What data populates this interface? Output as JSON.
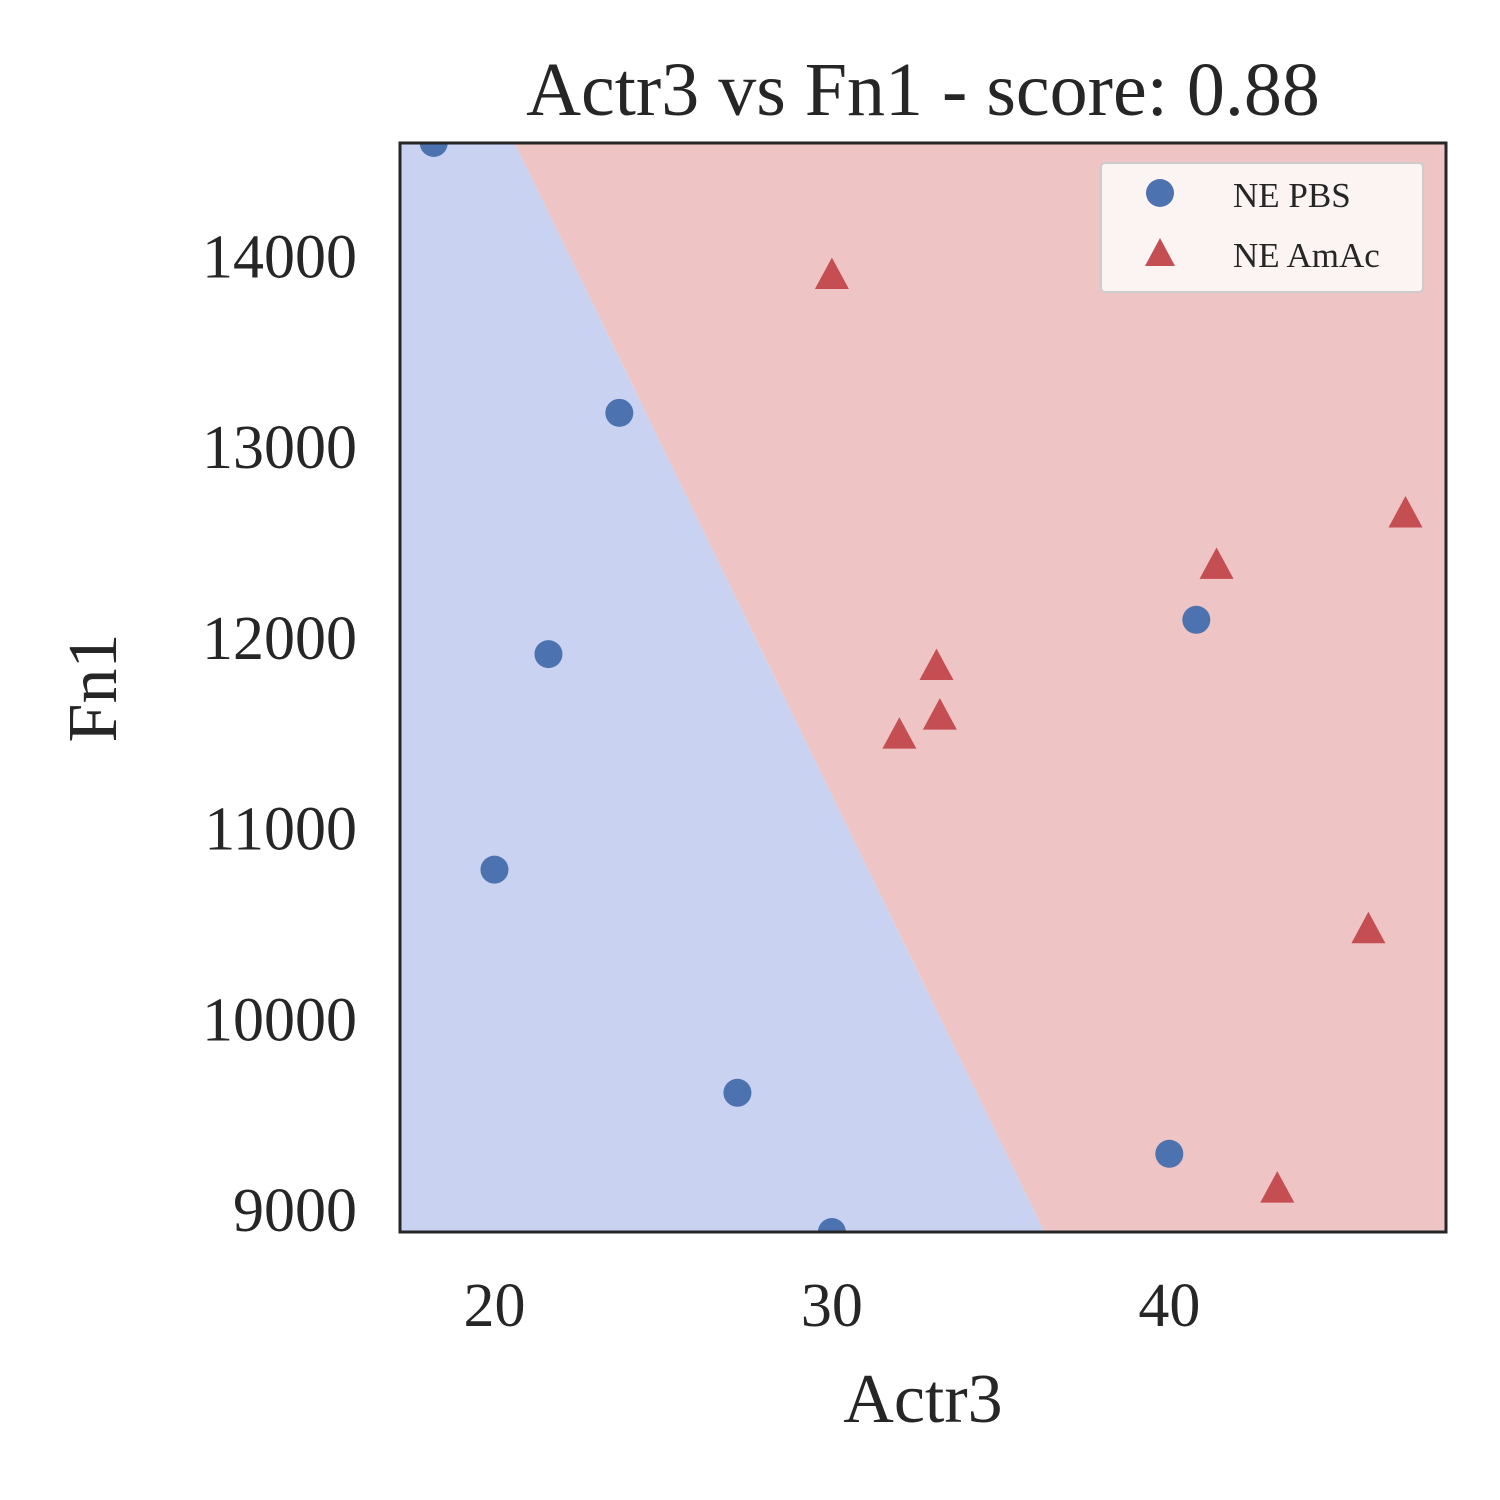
{
  "chart_data": {
    "type": "scatter",
    "title": "Actr3 vs Fn1 - score: 0.88",
    "xlabel": "Actr3",
    "ylabel": "Fn1",
    "xlim": [
      17.2,
      48.2
    ],
    "ylim": [
      8880,
      14590
    ],
    "xticks": [
      20,
      30,
      40
    ],
    "yticks": [
      9000,
      10000,
      11000,
      12000,
      13000,
      14000
    ],
    "grid": false,
    "legend_position": "top-right",
    "decision_boundary": {
      "points": [
        [
          20.6,
          14590
        ],
        [
          36.3,
          8880
        ]
      ],
      "left_region_class": "NE PBS",
      "right_region_class": "NE AmAc"
    },
    "colors": {
      "NE PBS": "#4c72b0",
      "NE AmAc": "#c44e52",
      "region_NE PBS": "#c9d2f1",
      "region_NE AmAc": "#eec4c4"
    },
    "series": [
      {
        "name": "NE PBS",
        "marker": "circle",
        "points": [
          [
            18.2,
            14590
          ],
          [
            23.7,
            13175
          ],
          [
            21.6,
            11910
          ],
          [
            20.0,
            10780
          ],
          [
            27.2,
            9610
          ],
          [
            30.0,
            8880
          ],
          [
            40.0,
            9290
          ],
          [
            40.8,
            12090
          ]
        ]
      },
      {
        "name": "NE AmAc",
        "marker": "triangle",
        "points": [
          [
            30.0,
            13900
          ],
          [
            33.1,
            11850
          ],
          [
            33.2,
            11590
          ],
          [
            32.0,
            11490
          ],
          [
            41.4,
            12380
          ],
          [
            47.0,
            12650
          ],
          [
            45.9,
            10470
          ],
          [
            43.2,
            9110
          ]
        ]
      }
    ]
  }
}
